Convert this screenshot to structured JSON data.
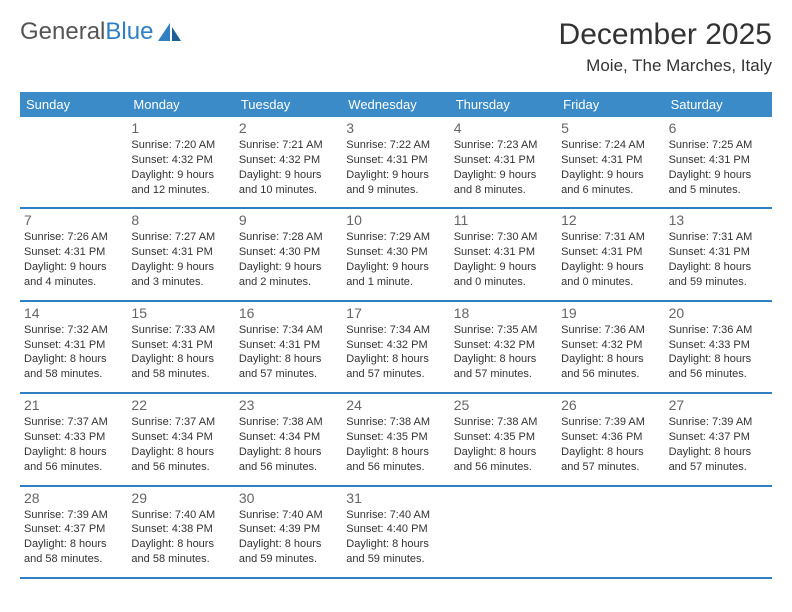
{
  "brand": {
    "part1": "General",
    "part2": "Blue"
  },
  "title": "December 2025",
  "location": "Moie, The Marches, Italy",
  "colors": {
    "header_bg": "#3b8bc9",
    "rule": "#2f7fc2",
    "logo_blue": "#2f7fc2"
  },
  "day_names": [
    "Sunday",
    "Monday",
    "Tuesday",
    "Wednesday",
    "Thursday",
    "Friday",
    "Saturday"
  ],
  "weeks": [
    [
      {
        "n": "",
        "l1": "",
        "l2": "",
        "l3": "",
        "l4": ""
      },
      {
        "n": "1",
        "l1": "Sunrise: 7:20 AM",
        "l2": "Sunset: 4:32 PM",
        "l3": "Daylight: 9 hours",
        "l4": "and 12 minutes."
      },
      {
        "n": "2",
        "l1": "Sunrise: 7:21 AM",
        "l2": "Sunset: 4:32 PM",
        "l3": "Daylight: 9 hours",
        "l4": "and 10 minutes."
      },
      {
        "n": "3",
        "l1": "Sunrise: 7:22 AM",
        "l2": "Sunset: 4:31 PM",
        "l3": "Daylight: 9 hours",
        "l4": "and 9 minutes."
      },
      {
        "n": "4",
        "l1": "Sunrise: 7:23 AM",
        "l2": "Sunset: 4:31 PM",
        "l3": "Daylight: 9 hours",
        "l4": "and 8 minutes."
      },
      {
        "n": "5",
        "l1": "Sunrise: 7:24 AM",
        "l2": "Sunset: 4:31 PM",
        "l3": "Daylight: 9 hours",
        "l4": "and 6 minutes."
      },
      {
        "n": "6",
        "l1": "Sunrise: 7:25 AM",
        "l2": "Sunset: 4:31 PM",
        "l3": "Daylight: 9 hours",
        "l4": "and 5 minutes."
      }
    ],
    [
      {
        "n": "7",
        "l1": "Sunrise: 7:26 AM",
        "l2": "Sunset: 4:31 PM",
        "l3": "Daylight: 9 hours",
        "l4": "and 4 minutes."
      },
      {
        "n": "8",
        "l1": "Sunrise: 7:27 AM",
        "l2": "Sunset: 4:31 PM",
        "l3": "Daylight: 9 hours",
        "l4": "and 3 minutes."
      },
      {
        "n": "9",
        "l1": "Sunrise: 7:28 AM",
        "l2": "Sunset: 4:30 PM",
        "l3": "Daylight: 9 hours",
        "l4": "and 2 minutes."
      },
      {
        "n": "10",
        "l1": "Sunrise: 7:29 AM",
        "l2": "Sunset: 4:30 PM",
        "l3": "Daylight: 9 hours",
        "l4": "and 1 minute."
      },
      {
        "n": "11",
        "l1": "Sunrise: 7:30 AM",
        "l2": "Sunset: 4:31 PM",
        "l3": "Daylight: 9 hours",
        "l4": "and 0 minutes."
      },
      {
        "n": "12",
        "l1": "Sunrise: 7:31 AM",
        "l2": "Sunset: 4:31 PM",
        "l3": "Daylight: 9 hours",
        "l4": "and 0 minutes."
      },
      {
        "n": "13",
        "l1": "Sunrise: 7:31 AM",
        "l2": "Sunset: 4:31 PM",
        "l3": "Daylight: 8 hours",
        "l4": "and 59 minutes."
      }
    ],
    [
      {
        "n": "14",
        "l1": "Sunrise: 7:32 AM",
        "l2": "Sunset: 4:31 PM",
        "l3": "Daylight: 8 hours",
        "l4": "and 58 minutes."
      },
      {
        "n": "15",
        "l1": "Sunrise: 7:33 AM",
        "l2": "Sunset: 4:31 PM",
        "l3": "Daylight: 8 hours",
        "l4": "and 58 minutes."
      },
      {
        "n": "16",
        "l1": "Sunrise: 7:34 AM",
        "l2": "Sunset: 4:31 PM",
        "l3": "Daylight: 8 hours",
        "l4": "and 57 minutes."
      },
      {
        "n": "17",
        "l1": "Sunrise: 7:34 AM",
        "l2": "Sunset: 4:32 PM",
        "l3": "Daylight: 8 hours",
        "l4": "and 57 minutes."
      },
      {
        "n": "18",
        "l1": "Sunrise: 7:35 AM",
        "l2": "Sunset: 4:32 PM",
        "l3": "Daylight: 8 hours",
        "l4": "and 57 minutes."
      },
      {
        "n": "19",
        "l1": "Sunrise: 7:36 AM",
        "l2": "Sunset: 4:32 PM",
        "l3": "Daylight: 8 hours",
        "l4": "and 56 minutes."
      },
      {
        "n": "20",
        "l1": "Sunrise: 7:36 AM",
        "l2": "Sunset: 4:33 PM",
        "l3": "Daylight: 8 hours",
        "l4": "and 56 minutes."
      }
    ],
    [
      {
        "n": "21",
        "l1": "Sunrise: 7:37 AM",
        "l2": "Sunset: 4:33 PM",
        "l3": "Daylight: 8 hours",
        "l4": "and 56 minutes."
      },
      {
        "n": "22",
        "l1": "Sunrise: 7:37 AM",
        "l2": "Sunset: 4:34 PM",
        "l3": "Daylight: 8 hours",
        "l4": "and 56 minutes."
      },
      {
        "n": "23",
        "l1": "Sunrise: 7:38 AM",
        "l2": "Sunset: 4:34 PM",
        "l3": "Daylight: 8 hours",
        "l4": "and 56 minutes."
      },
      {
        "n": "24",
        "l1": "Sunrise: 7:38 AM",
        "l2": "Sunset: 4:35 PM",
        "l3": "Daylight: 8 hours",
        "l4": "and 56 minutes."
      },
      {
        "n": "25",
        "l1": "Sunrise: 7:38 AM",
        "l2": "Sunset: 4:35 PM",
        "l3": "Daylight: 8 hours",
        "l4": "and 56 minutes."
      },
      {
        "n": "26",
        "l1": "Sunrise: 7:39 AM",
        "l2": "Sunset: 4:36 PM",
        "l3": "Daylight: 8 hours",
        "l4": "and 57 minutes."
      },
      {
        "n": "27",
        "l1": "Sunrise: 7:39 AM",
        "l2": "Sunset: 4:37 PM",
        "l3": "Daylight: 8 hours",
        "l4": "and 57 minutes."
      }
    ],
    [
      {
        "n": "28",
        "l1": "Sunrise: 7:39 AM",
        "l2": "Sunset: 4:37 PM",
        "l3": "Daylight: 8 hours",
        "l4": "and 58 minutes."
      },
      {
        "n": "29",
        "l1": "Sunrise: 7:40 AM",
        "l2": "Sunset: 4:38 PM",
        "l3": "Daylight: 8 hours",
        "l4": "and 58 minutes."
      },
      {
        "n": "30",
        "l1": "Sunrise: 7:40 AM",
        "l2": "Sunset: 4:39 PM",
        "l3": "Daylight: 8 hours",
        "l4": "and 59 minutes."
      },
      {
        "n": "31",
        "l1": "Sunrise: 7:40 AM",
        "l2": "Sunset: 4:40 PM",
        "l3": "Daylight: 8 hours",
        "l4": "and 59 minutes."
      },
      {
        "n": "",
        "l1": "",
        "l2": "",
        "l3": "",
        "l4": ""
      },
      {
        "n": "",
        "l1": "",
        "l2": "",
        "l3": "",
        "l4": ""
      },
      {
        "n": "",
        "l1": "",
        "l2": "",
        "l3": "",
        "l4": ""
      }
    ]
  ]
}
